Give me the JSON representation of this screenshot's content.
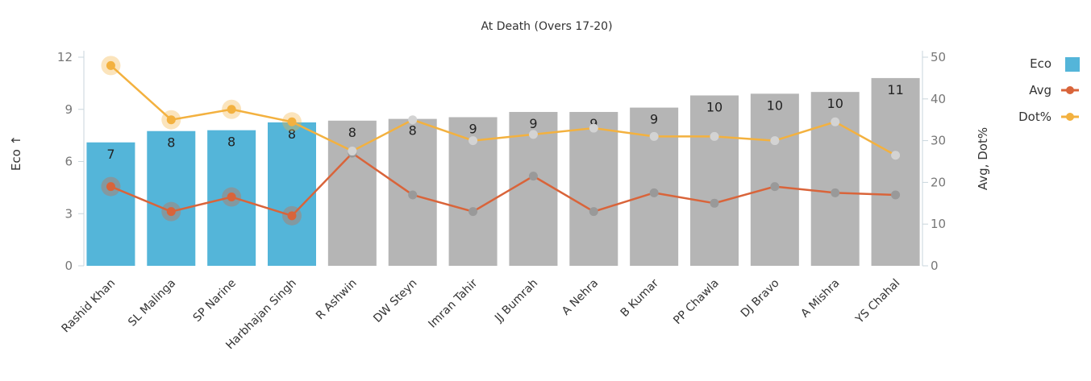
{
  "chart_data": {
    "type": "bar",
    "title": "At Death (Overs 17-20)",
    "ylabel": "Eco ↑",
    "y2label": "Avg, Dot%",
    "ylim": [
      0,
      12
    ],
    "y2lim": [
      0,
      50
    ],
    "yticks": [
      "0",
      "3",
      "6",
      "9",
      "12"
    ],
    "y2ticks": [
      "0",
      "10",
      "20",
      "30",
      "40",
      "50"
    ],
    "categories": [
      "Rashid Khan",
      "SL Malinga",
      "SP Narine",
      "Harbhajan Singh",
      "R Ashwin",
      "DW Steyn",
      "Imran Tahir",
      "JJ Bumrah",
      "A Nehra",
      "B Kumar",
      "PP Chawla",
      "DJ Bravo",
      "A Mishra",
      "YS Chahal"
    ],
    "highlighted": [
      true,
      true,
      true,
      true,
      false,
      false,
      false,
      false,
      false,
      false,
      false,
      false,
      false,
      false
    ],
    "series": [
      {
        "name": "Eco",
        "axis": "left",
        "kind": "bar",
        "color": "#54b5d9",
        "values": [
          7.1,
          7.75,
          7.8,
          8.25,
          8.35,
          8.45,
          8.55,
          8.85,
          8.85,
          9.1,
          9.8,
          9.9,
          10.0,
          10.8
        ],
        "labels": [
          "7",
          "8",
          "8",
          "8",
          "8",
          "8",
          "9",
          "9",
          "9",
          "9",
          "10",
          "10",
          "10",
          "11"
        ]
      },
      {
        "name": "Avg",
        "axis": "right",
        "kind": "line",
        "color": "#d9643a",
        "values": [
          19.0,
          13.0,
          16.5,
          12.0,
          27.0,
          17.0,
          13.0,
          21.5,
          13.0,
          17.5,
          15.0,
          19.0,
          17.5,
          17.0
        ]
      },
      {
        "name": "Dot%",
        "axis": "right",
        "kind": "line",
        "color": "#f3b13f",
        "values": [
          48.0,
          35.0,
          37.5,
          34.5,
          27.5,
          35.0,
          30.0,
          31.5,
          33.0,
          31.0,
          31.0,
          30.0,
          34.5,
          26.5
        ]
      }
    ],
    "colors": {
      "highlight_bar": "#54b5d9",
      "dim_bar": "#b5b5b5",
      "dim_point": "#999999",
      "dim_dot_point": "#d3d3d3",
      "axis": "#c9d6dc"
    },
    "legend": {
      "position": "top-right",
      "items": [
        {
          "label": "Eco",
          "symbol": "square",
          "color": "#54b5d9"
        },
        {
          "label": "Avg",
          "symbol": "line",
          "color": "#d9643a"
        },
        {
          "label": "Dot%",
          "symbol": "line",
          "color": "#f3b13f"
        }
      ]
    },
    "grid": false
  }
}
